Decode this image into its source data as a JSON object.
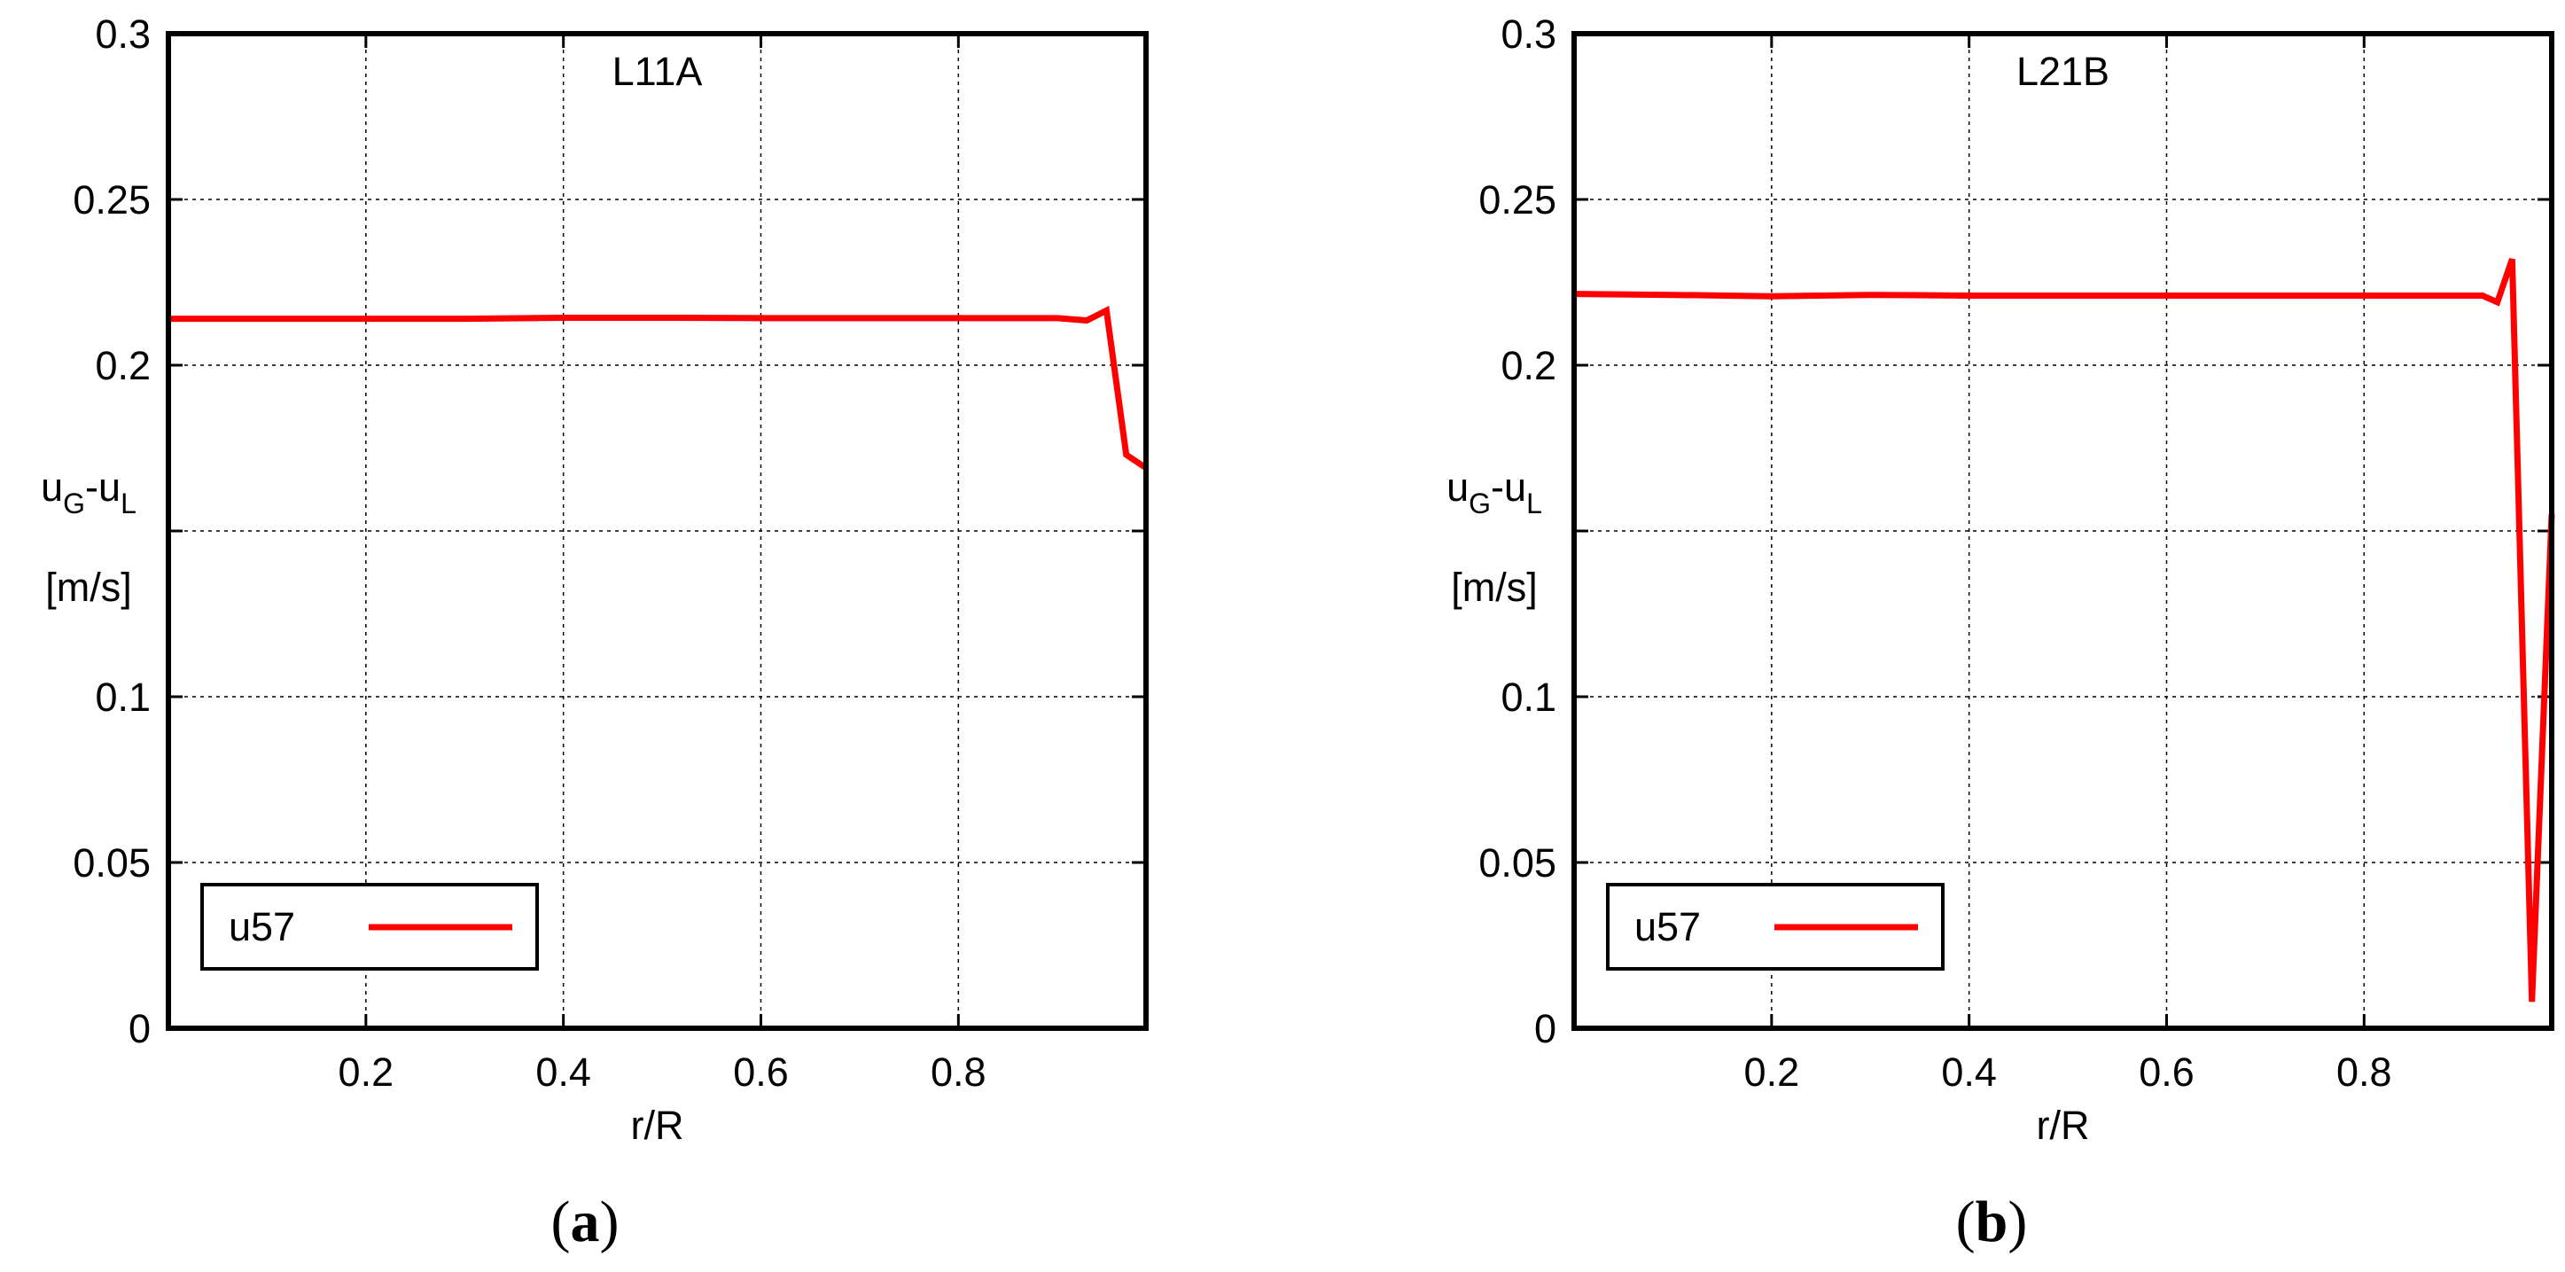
{
  "chart_data": [
    {
      "type": "line",
      "title": "L11A",
      "caption": "a",
      "xlabel": "r/R",
      "ylabel": {
        "main_a": "u",
        "sub_a": "G",
        "dash": "-",
        "main_b": "u",
        "sub_b": "L",
        "units": "[m/s]"
      },
      "xlim": [
        0,
        0.99
      ],
      "ylim": [
        0,
        0.3
      ],
      "xticks": [
        "0.2",
        "0.4",
        "0.6",
        "0.8"
      ],
      "yticks": [
        "0",
        "0.05",
        "0.1",
        "0.15",
        "0.2",
        "0.25",
        "0.3"
      ],
      "yticks_shown": [
        "0",
        "0.05",
        "0.1",
        "",
        "0.2",
        "0.25",
        "0.3"
      ],
      "grid": true,
      "legend_position": "bottom-left",
      "series": [
        {
          "name": "u57",
          "color": "#ff0000",
          "x": [
            0.0,
            0.1,
            0.2,
            0.3,
            0.4,
            0.5,
            0.6,
            0.7,
            0.8,
            0.9,
            0.93,
            0.95,
            0.97,
            0.99
          ],
          "y": [
            0.214,
            0.214,
            0.214,
            0.214,
            0.2143,
            0.2143,
            0.2142,
            0.2142,
            0.2142,
            0.2142,
            0.2135,
            0.2165,
            0.173,
            0.169
          ]
        }
      ]
    },
    {
      "type": "line",
      "title": "L21B",
      "caption": "b",
      "xlabel": "r/R",
      "ylabel": {
        "main_a": "u",
        "sub_a": "G",
        "dash": "-",
        "main_b": "u",
        "sub_b": "L",
        "units": "[m/s]"
      },
      "xlim": [
        0,
        0.99
      ],
      "ylim": [
        0,
        0.3
      ],
      "xticks": [
        "0.2",
        "0.4",
        "0.6",
        "0.8"
      ],
      "yticks": [
        "0",
        "0.05",
        "0.1",
        "0.15",
        "0.2",
        "0.25",
        "0.3"
      ],
      "yticks_shown": [
        "0",
        "0.05",
        "0.1",
        "",
        "0.2",
        "0.25",
        "0.3"
      ],
      "grid": true,
      "legend_position": "bottom-left",
      "series": [
        {
          "name": "u57",
          "color": "#ff0000",
          "x": [
            0.0,
            0.1,
            0.2,
            0.3,
            0.4,
            0.5,
            0.6,
            0.7,
            0.8,
            0.9,
            0.92,
            0.935,
            0.95,
            0.97,
            0.99
          ],
          "y": [
            0.2215,
            0.2212,
            0.2208,
            0.2212,
            0.221,
            0.221,
            0.221,
            0.221,
            0.221,
            0.221,
            0.221,
            0.219,
            0.232,
            0.008,
            0.155
          ]
        }
      ]
    }
  ]
}
